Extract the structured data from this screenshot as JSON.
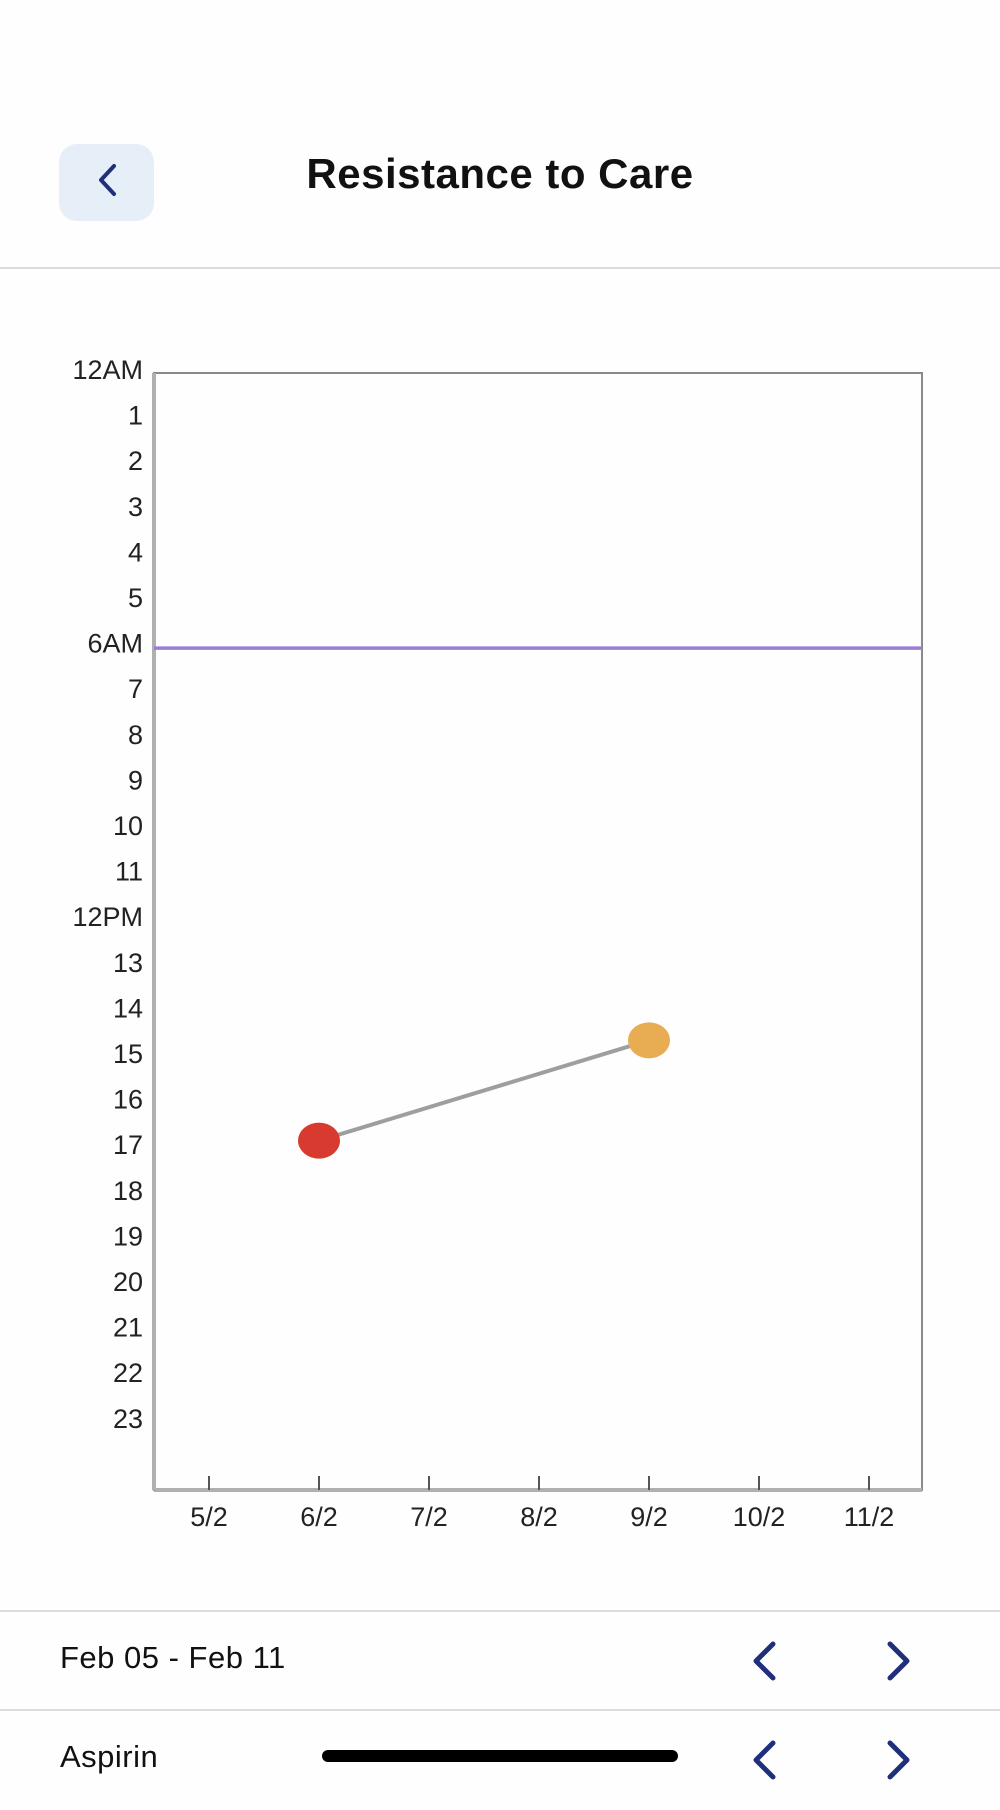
{
  "header": {
    "title": "Resistance to Care",
    "back_icon": "chevron-left-icon"
  },
  "chart_data": {
    "type": "line",
    "title": "",
    "xlabel": "",
    "ylabel": "",
    "x_tick_labels": [
      "5/2",
      "6/2",
      "7/2",
      "8/2",
      "9/2",
      "10/2",
      "11/2"
    ],
    "y_tick_labels": [
      "12AM",
      "1",
      "2",
      "3",
      "4",
      "5",
      "6AM",
      "7",
      "8",
      "9",
      "10",
      "11",
      "12PM",
      "13",
      "14",
      "15",
      "16",
      "17",
      "18",
      "19",
      "20",
      "21",
      "22",
      "23"
    ],
    "ylim": [
      0,
      24.5
    ],
    "y_inverted": true,
    "reference_line": {
      "y": 6.1,
      "color": "#9b7fd4"
    },
    "series": [
      {
        "points": [
          {
            "x": "6/2",
            "y": 16.9,
            "color": "#d93a2f"
          },
          {
            "x": "9/2",
            "y": 14.7,
            "color": "#e8ad52"
          }
        ],
        "line_color": "#9e9e9e"
      }
    ],
    "grid": false
  },
  "date_nav": {
    "range_label": "Feb 05 - Feb 11",
    "prev_icon": "chevron-left-icon",
    "next_icon": "chevron-right-icon"
  },
  "medication_nav": {
    "label": "Aspirin",
    "prev_icon": "chevron-left-icon",
    "next_icon": "chevron-right-icon"
  },
  "colors": {
    "accent": "#1f2f7a",
    "back_button_bg": "#e6eef8",
    "divider": "#dcdcdc"
  }
}
